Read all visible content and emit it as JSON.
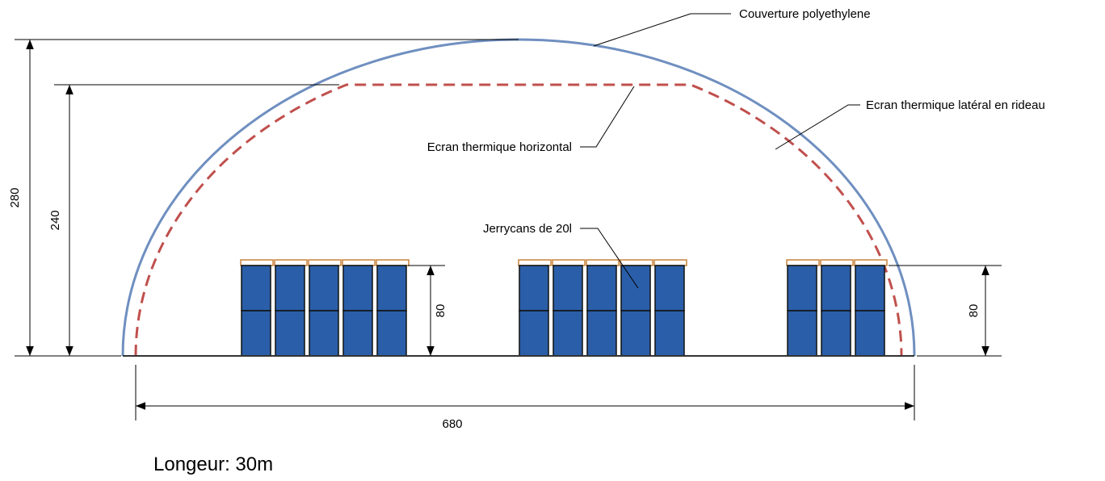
{
  "labels": {
    "cover": "Couverture polyethylene",
    "horizontal_screen": "Ecran thermique horizontal",
    "side_screen": "Ecran thermique latéral en rideau",
    "jerrycans": "Jerrycans de 20l"
  },
  "dimensions": {
    "total_height": 280,
    "screen_height": 240,
    "stack_height_center": 80,
    "stack_height_right": 80,
    "width": 680
  },
  "footer": "Longeur: 30m"
}
